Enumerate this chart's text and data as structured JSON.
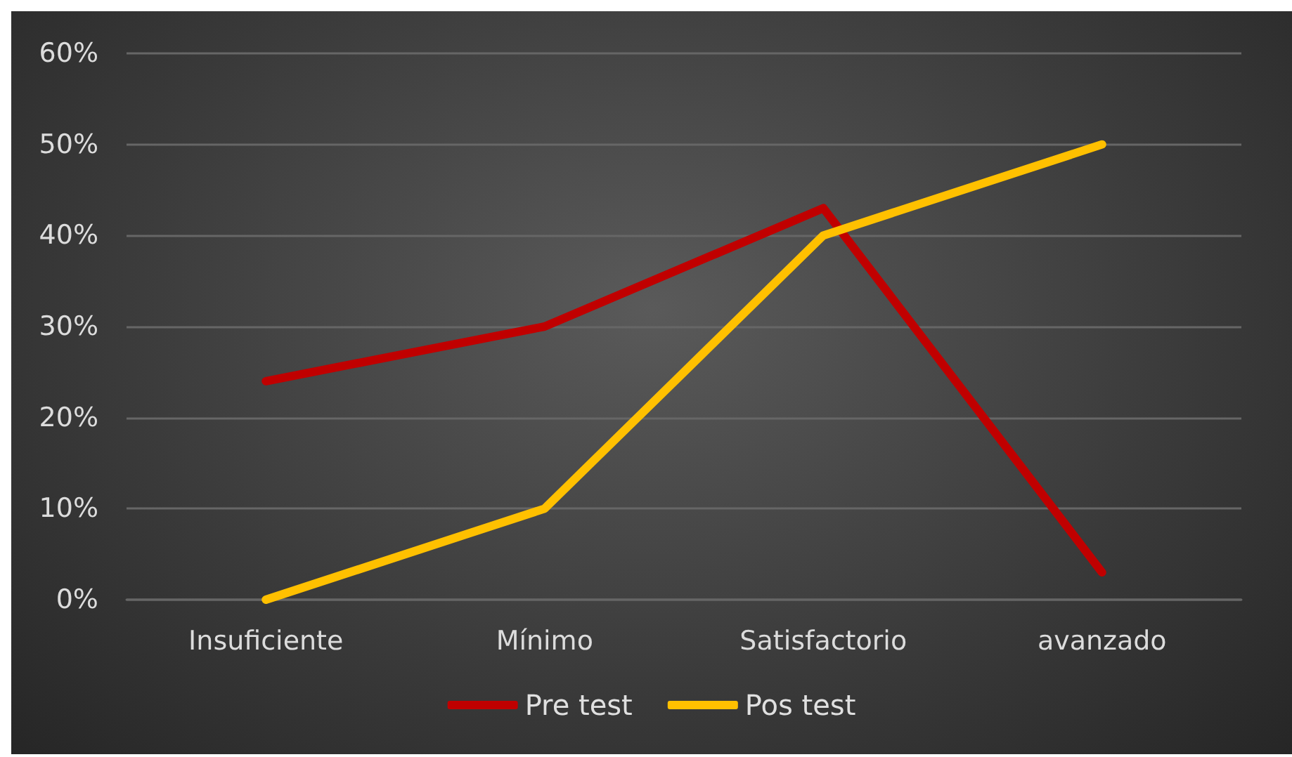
{
  "chart_data": {
    "type": "line",
    "categories": [
      "Insuficiente",
      "Mínimo",
      "Satisfactorio",
      "avanzado"
    ],
    "series": [
      {
        "name": "Pre test",
        "color": "#c00000",
        "values": [
          24,
          30,
          43,
          3
        ]
      },
      {
        "name": "Pos test",
        "color": "#ffc000",
        "values": [
          0,
          10,
          40,
          50
        ]
      }
    ],
    "ylim": [
      0,
      60
    ],
    "yticks": [
      {
        "value": 0,
        "label": "0%"
      },
      {
        "value": 10,
        "label": "10%"
      },
      {
        "value": 20,
        "label": "20%"
      },
      {
        "value": 30,
        "label": "30%"
      },
      {
        "value": 40,
        "label": "40%"
      },
      {
        "value": 50,
        "label": "50%"
      },
      {
        "value": 60,
        "label": "60%"
      }
    ],
    "grid": "y",
    "legend": "bottom",
    "marker": "none",
    "line_style": "solid"
  }
}
